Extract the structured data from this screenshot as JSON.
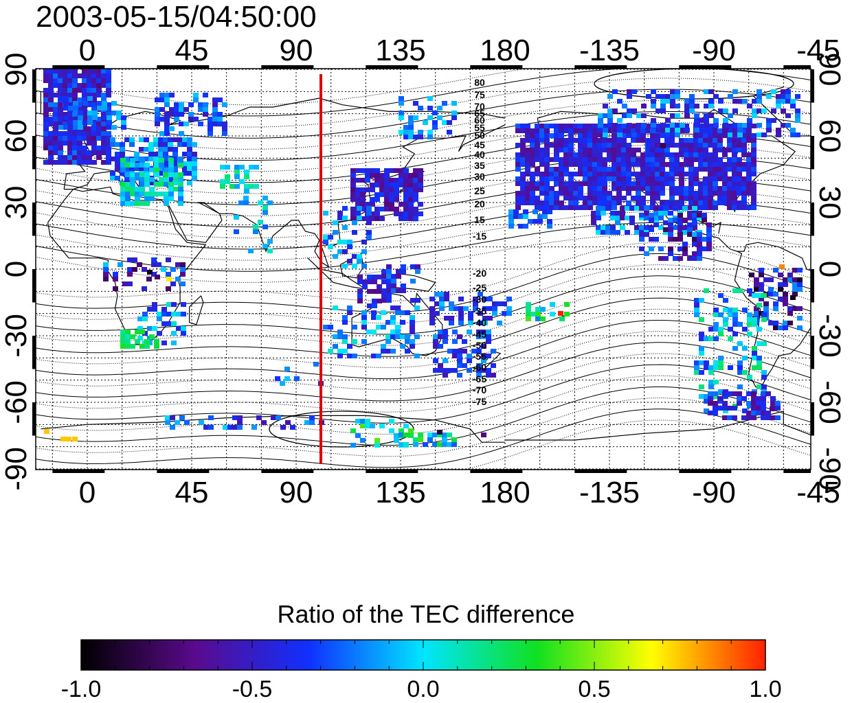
{
  "title": "2003-05-15/04:50:00",
  "map": {
    "lon_ticks": [
      "0",
      "45",
      "90",
      "135",
      "180",
      "-135",
      "-90",
      "-45"
    ],
    "lat_ticks": [
      "90",
      "60",
      "30",
      "0",
      "-30",
      "-60",
      "-90"
    ],
    "contour_labels": [
      "80",
      "75",
      "70",
      "65",
      "60",
      "55",
      "50",
      "45",
      "40",
      "35",
      "30",
      "25",
      "20",
      "15",
      "-15",
      "-20",
      "-25",
      "-30",
      "-35",
      "-40",
      "-45",
      "-50",
      "-55",
      "-60",
      "-65",
      "-70",
      "-75"
    ],
    "terminator_color": "#dd0000"
  },
  "colorbar": {
    "title": "Ratio of the TEC difference",
    "ticks": [
      "-1.0",
      "-0.5",
      "0.0",
      "0.5",
      "1.0"
    ],
    "colormap": [
      "#000000",
      "#5a0a8c",
      "#1030ff",
      "#00e5ff",
      "#10e020",
      "#ffff00",
      "#ff2000"
    ]
  }
}
